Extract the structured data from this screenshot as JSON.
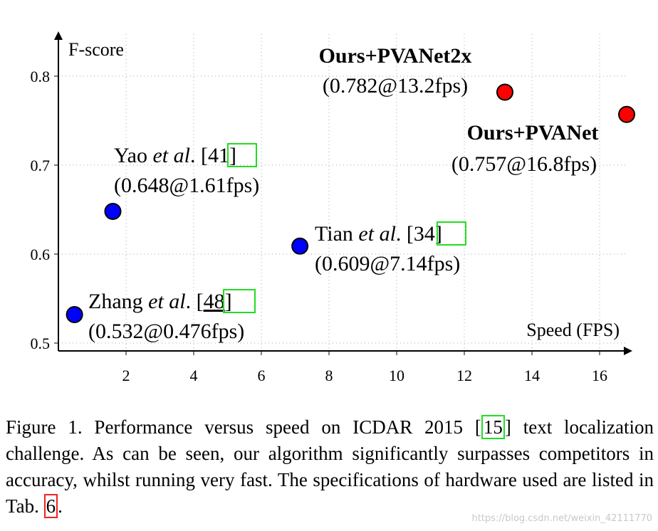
{
  "chart_data": {
    "type": "scatter",
    "xlabel": "Speed (FPS)",
    "ylabel": "F-score",
    "xlim": [
      0,
      17.6
    ],
    "ylim": [
      0.49,
      0.845
    ],
    "xticks": [
      2,
      4,
      6,
      8,
      10,
      12,
      14,
      16
    ],
    "yticks": [
      0.5,
      0.6,
      0.7,
      0.8
    ],
    "ytick_labels": [
      "0.5",
      "0.6",
      "0.7",
      "0.8"
    ],
    "grid": true,
    "points": [
      {
        "id": "zhang",
        "x": 0.476,
        "y": 0.532,
        "color": "#0000ff",
        "name": "Zhang",
        "etal": "et al",
        "cite": "48",
        "value_label": "(0.532@0.476fps)"
      },
      {
        "id": "yao",
        "x": 1.61,
        "y": 0.648,
        "color": "#0000ff",
        "name": "Yao",
        "etal": "et al",
        "cite": "41",
        "value_label": "(0.648@1.61fps)"
      },
      {
        "id": "tian",
        "x": 7.14,
        "y": 0.609,
        "color": "#0000ff",
        "name": "Tian",
        "etal": "et al",
        "cite": "34",
        "value_label": "(0.609@7.14fps)"
      },
      {
        "id": "pvanet2x",
        "x": 13.2,
        "y": 0.782,
        "color": "#ff0000",
        "name": "Ours+PVANet2x",
        "value_label": "(0.782@13.2fps)"
      },
      {
        "id": "pvanet",
        "x": 16.8,
        "y": 0.757,
        "color": "#ff0000",
        "name": "Ours+PVANet",
        "value_label": "(0.757@16.8fps)"
      }
    ]
  },
  "caption": {
    "part1": "Figure 1. Performance versus speed on ICDAR 2015 [",
    "cite1": "15",
    "part2": "] text localization challenge.  As can be seen, our algorithm significantly surpasses competitors in accuracy, whilst running very fast. The specifications of hardware used are listed in Tab. ",
    "cite2": "6",
    "part3": "."
  },
  "watermark": "https://blog.csdn.net/weixin_42111770"
}
